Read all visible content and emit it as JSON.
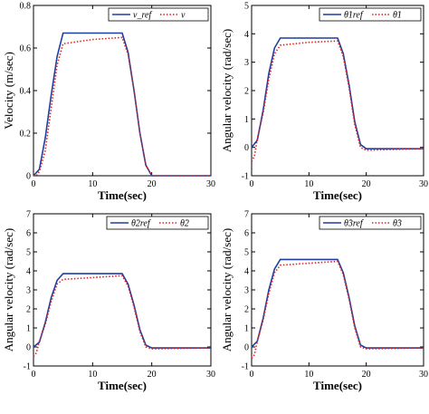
{
  "chart_data": [
    {
      "type": "line",
      "xlabel": "Time(sec)",
      "ylabel": "Velocity (m/sec)",
      "xlim": [
        0,
        30
      ],
      "ylim": [
        0,
        0.8
      ],
      "xticks": [
        "0",
        "10",
        "20",
        "30"
      ],
      "yticks": [
        "0",
        "0.2",
        "0.4",
        "0.6",
        "0.8"
      ],
      "legend_position": "top-right",
      "series": [
        {
          "name": "v_ref",
          "color": "#1f3fa0",
          "style": "solid",
          "x": [
            0,
            1,
            2,
            3,
            4,
            5,
            15,
            16,
            17,
            18,
            19,
            20,
            30
          ],
          "y": [
            0,
            0.03,
            0.18,
            0.38,
            0.56,
            0.67,
            0.67,
            0.58,
            0.4,
            0.2,
            0.05,
            0,
            0
          ]
        },
        {
          "name": "v",
          "color": "#e0201e",
          "style": "dotted",
          "x": [
            0,
            0.5,
            1,
            2,
            3,
            4,
            5,
            10,
            15,
            16,
            17,
            18,
            19,
            20,
            30
          ],
          "y": [
            0,
            0.0,
            0.02,
            0.12,
            0.32,
            0.52,
            0.62,
            0.64,
            0.65,
            0.57,
            0.4,
            0.2,
            0.05,
            0,
            0
          ]
        }
      ]
    },
    {
      "type": "line",
      "xlabel": "Time(sec)",
      "ylabel": "Angular velocity (rad/sec)",
      "xlim": [
        0,
        30
      ],
      "ylim": [
        -1,
        5
      ],
      "xticks": [
        "0",
        "10",
        "20",
        "30"
      ],
      "yticks": [
        "-1",
        "0",
        "1",
        "2",
        "3",
        "4",
        "5"
      ],
      "legend_position": "top-right",
      "series": [
        {
          "name": "θ̇1ref",
          "color": "#1f3fa0",
          "style": "solid",
          "x": [
            0,
            1,
            2,
            3,
            4,
            5,
            15,
            16,
            17,
            18,
            19,
            20,
            30
          ],
          "y": [
            0,
            0.25,
            1.3,
            2.6,
            3.5,
            3.85,
            3.85,
            3.3,
            2.2,
            0.9,
            0.1,
            -0.05,
            -0.05
          ]
        },
        {
          "name": "θ̇1",
          "color": "#e0201e",
          "style": "dotted",
          "x": [
            0,
            0.5,
            1,
            2,
            3,
            4,
            5,
            10,
            15,
            16,
            17,
            18,
            19,
            20,
            30
          ],
          "y": [
            -0.5,
            -0.3,
            0.3,
            1.2,
            2.4,
            3.3,
            3.6,
            3.7,
            3.75,
            3.2,
            2.1,
            0.8,
            0.0,
            -0.1,
            -0.05
          ]
        }
      ]
    },
    {
      "type": "line",
      "xlabel": "Time(sec)",
      "ylabel": "Angular velocity (rad/sec)",
      "xlim": [
        0,
        30
      ],
      "ylim": [
        -1,
        7
      ],
      "xticks": [
        "0",
        "10",
        "20",
        "30"
      ],
      "yticks": [
        "-1",
        "0",
        "1",
        "2",
        "3",
        "4",
        "5",
        "6",
        "7"
      ],
      "legend_position": "top-right",
      "series": [
        {
          "name": "θ̇2ref",
          "color": "#1f3fa0",
          "style": "solid",
          "x": [
            0,
            1,
            2,
            3,
            4,
            5,
            15,
            16,
            17,
            18,
            19,
            20,
            30
          ],
          "y": [
            0,
            0.25,
            1.3,
            2.6,
            3.5,
            3.85,
            3.85,
            3.3,
            2.2,
            0.9,
            0.1,
            -0.05,
            -0.05
          ]
        },
        {
          "name": "θ̇2",
          "color": "#e0201e",
          "style": "dotted",
          "x": [
            0,
            0.5,
            1,
            2,
            3,
            4,
            5,
            10,
            15,
            16,
            17,
            18,
            19,
            20,
            30
          ],
          "y": [
            -0.5,
            -0.3,
            0.3,
            1.2,
            2.4,
            3.3,
            3.55,
            3.65,
            3.75,
            3.2,
            2.1,
            0.8,
            0.0,
            -0.1,
            -0.05
          ]
        }
      ]
    },
    {
      "type": "line",
      "xlabel": "Time(sec)",
      "ylabel": "Angular velocity (rad/sec)",
      "xlim": [
        0,
        30
      ],
      "ylim": [
        -1,
        7
      ],
      "xticks": [
        "0",
        "10",
        "20",
        "30"
      ],
      "yticks": [
        "-1",
        "0",
        "1",
        "2",
        "3",
        "4",
        "5",
        "6",
        "7"
      ],
      "legend_position": "top-right",
      "series": [
        {
          "name": "θ̇3ref",
          "color": "#1f3fa0",
          "style": "solid",
          "x": [
            0,
            1,
            2,
            3,
            4,
            5,
            15,
            16,
            17,
            18,
            19,
            20,
            30
          ],
          "y": [
            0,
            0.3,
            1.5,
            3.0,
            4.1,
            4.6,
            4.6,
            3.9,
            2.6,
            1.1,
            0.1,
            -0.05,
            -0.05
          ]
        },
        {
          "name": "θ̇3",
          "color": "#e0201e",
          "style": "dotted",
          "x": [
            0,
            0.5,
            1,
            2,
            3,
            4,
            5,
            10,
            15,
            16,
            17,
            18,
            19,
            20,
            30
          ],
          "y": [
            -0.6,
            -0.4,
            0.3,
            1.4,
            2.8,
            3.9,
            4.3,
            4.4,
            4.5,
            3.8,
            2.5,
            1.0,
            0.0,
            -0.1,
            -0.05
          ]
        }
      ]
    }
  ]
}
